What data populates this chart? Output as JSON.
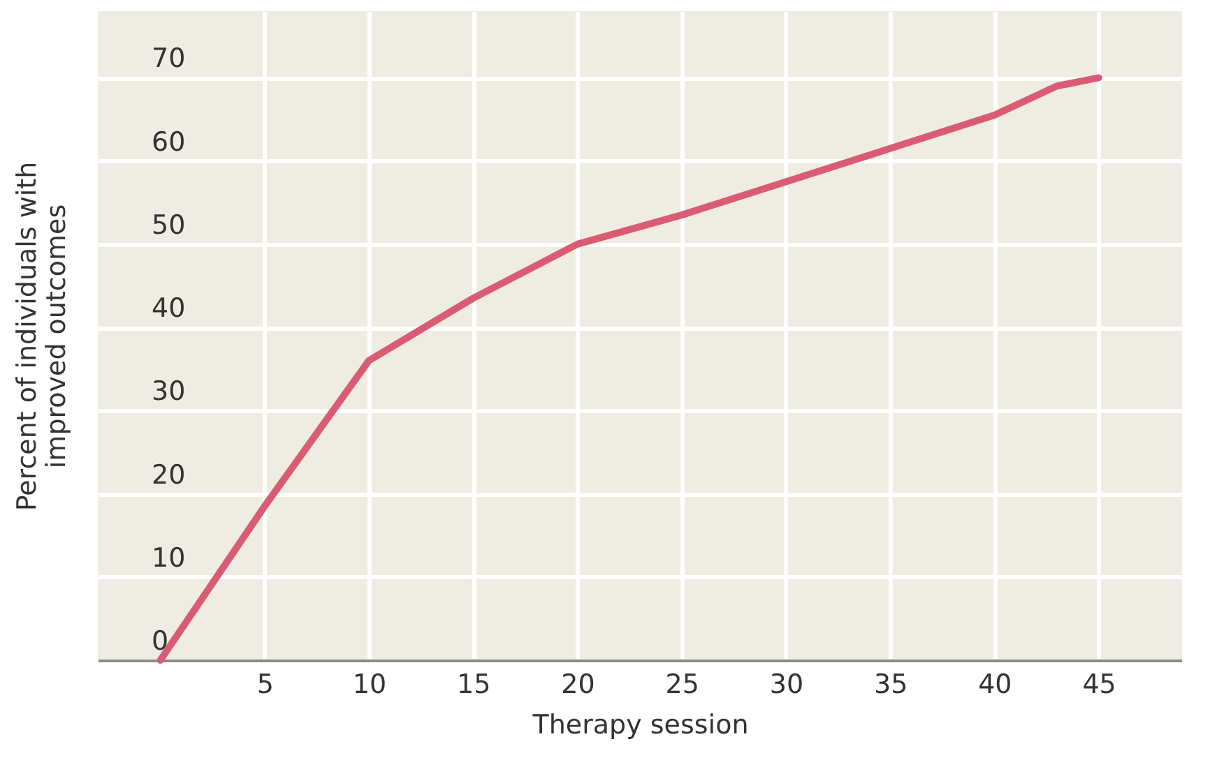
{
  "chart_data": {
    "type": "line",
    "xlabel": "Therapy session",
    "ylabel": "Percent of individuals with\nimproved outcomes",
    "x": [
      0,
      5,
      10,
      15,
      20,
      25,
      30,
      35,
      40,
      43,
      45
    ],
    "series": [
      {
        "color": "#d95b74",
        "values": [
          0,
          18.5,
          36,
          43.5,
          50,
          53.5,
          57.5,
          61.5,
          65.5,
          69,
          70
        ]
      }
    ],
    "xlim": [
      -3,
      49
    ],
    "xticks": [
      5,
      10,
      15,
      20,
      25,
      30,
      35,
      40,
      45
    ],
    "ylim": [
      0,
      78
    ],
    "yticks": [
      0,
      10,
      20,
      30,
      40,
      50,
      60,
      70
    ],
    "grid": true,
    "marker": "none",
    "line_style": "solid"
  }
}
